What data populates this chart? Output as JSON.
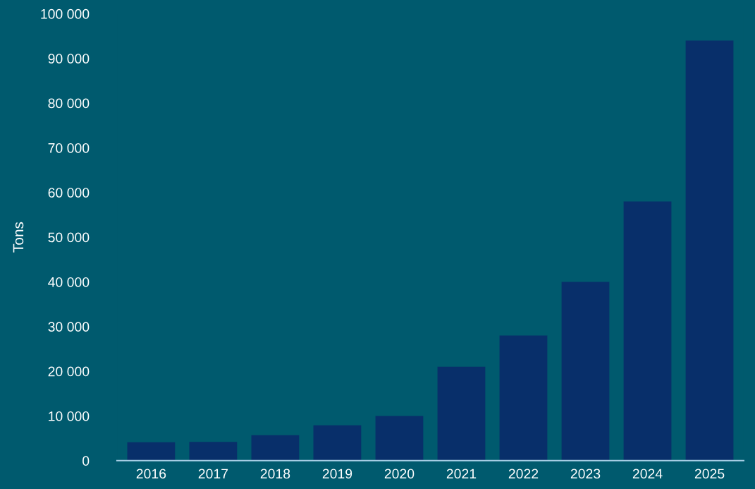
{
  "chart_data": {
    "type": "bar",
    "ylabel": "Tons",
    "categories": [
      "2016",
      "2017",
      "2018",
      "2019",
      "2020",
      "2021",
      "2022",
      "2023",
      "2024",
      "2025"
    ],
    "values": [
      4100,
      4200,
      5700,
      7900,
      10000,
      21000,
      28000,
      40000,
      58000,
      94000
    ],
    "color": "#082f6a",
    "ylim": [
      0,
      100000
    ],
    "yticks": [
      0,
      {
        "value": 10000,
        "label": "10 000"
      },
      {
        "value": 20000,
        "label": "20 000"
      },
      {
        "value": 30000,
        "label": "30 000"
      },
      {
        "value": 40000,
        "label": "40 000"
      },
      {
        "value": 50000,
        "label": "50 000"
      },
      {
        "value": 60000,
        "label": "60 000"
      },
      {
        "value": 70000,
        "label": "70 000"
      },
      {
        "value": 80000,
        "label": "80 000"
      },
      {
        "value": 90000,
        "label": "90 000"
      },
      {
        "value": 100000,
        "label": "100 000"
      }
    ],
    "grid": false
  }
}
